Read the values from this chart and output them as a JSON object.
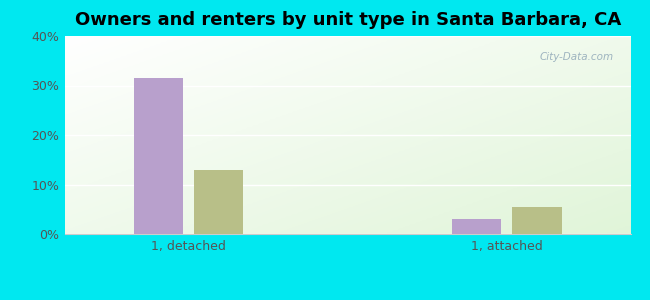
{
  "title": "Owners and renters by unit type in Santa Barbara, CA",
  "categories": [
    "1, detached",
    "1, attached"
  ],
  "owner_values": [
    31.5,
    3.0
  ],
  "renter_values": [
    13.0,
    5.5
  ],
  "owner_color": "#b8a0cc",
  "renter_color": "#b8bf88",
  "background_outer": "#00e8f0",
  "ylim": [
    0,
    40
  ],
  "yticks": [
    0,
    10,
    20,
    30,
    40
  ],
  "ytick_labels": [
    "0%",
    "10%",
    "20%",
    "30%",
    "40%"
  ],
  "bar_width": 0.28,
  "group_positions": [
    1.0,
    2.8
  ],
  "title_fontsize": 13,
  "tick_fontsize": 9,
  "legend_fontsize": 9,
  "watermark": "City-Data.com"
}
